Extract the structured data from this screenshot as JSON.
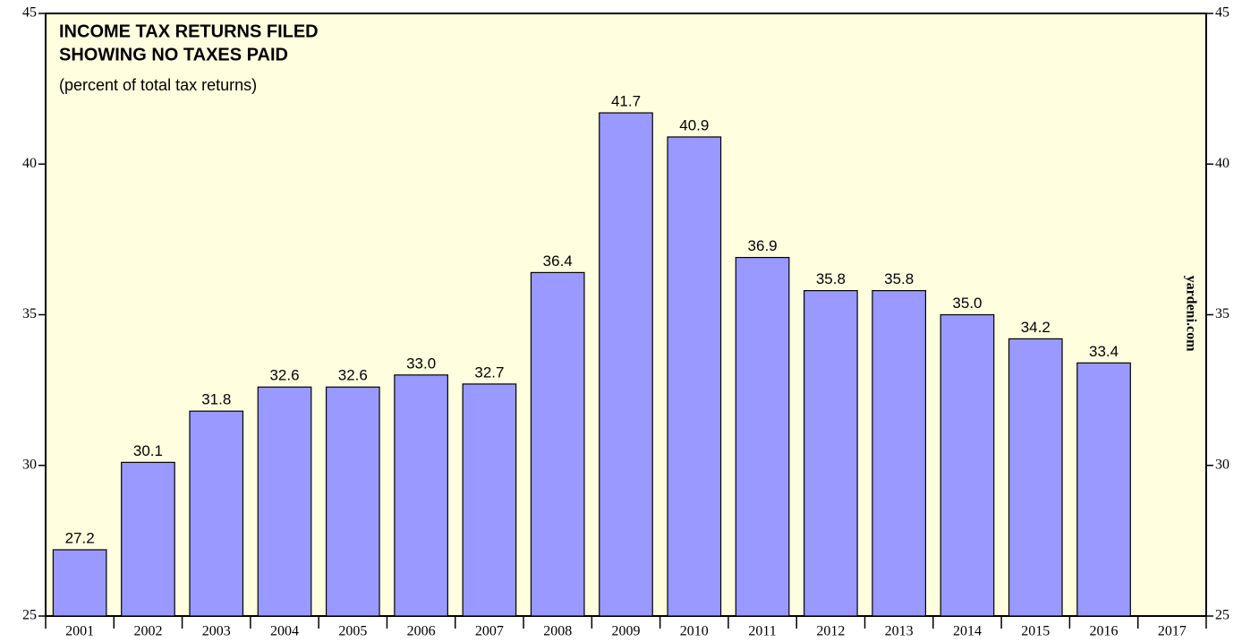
{
  "chart_data": {
    "type": "bar",
    "title": [
      "INCOME TAX RETURNS FILED",
      "SHOWING NO TAXES PAID"
    ],
    "subtitle": "(percent of total tax returns)",
    "source": "yardeni.com",
    "categories": [
      "2001",
      "2002",
      "2003",
      "2004",
      "2005",
      "2006",
      "2007",
      "2008",
      "2009",
      "2010",
      "2011",
      "2012",
      "2013",
      "2014",
      "2015",
      "2016",
      "2017"
    ],
    "values": [
      27.2,
      30.1,
      31.8,
      32.6,
      32.6,
      33.0,
      32.7,
      36.4,
      41.7,
      40.9,
      36.9,
      35.8,
      35.8,
      35.0,
      34.2,
      33.4,
      null
    ],
    "value_labels": [
      "27.2",
      "30.1",
      "31.8",
      "32.6",
      "32.6",
      "33.0",
      "32.7",
      "36.4",
      "41.7",
      "40.9",
      "36.9",
      "35.8",
      "35.8",
      "35.0",
      "34.2",
      "33.4",
      null
    ],
    "color": "#9999ff",
    "background": "#ffffe0",
    "ylim": [
      25,
      45
    ],
    "yticks": [
      25,
      30,
      35,
      40,
      45
    ],
    "y2lim": [
      25,
      45
    ],
    "y2ticks": [
      25,
      30,
      35,
      40,
      45
    ]
  }
}
